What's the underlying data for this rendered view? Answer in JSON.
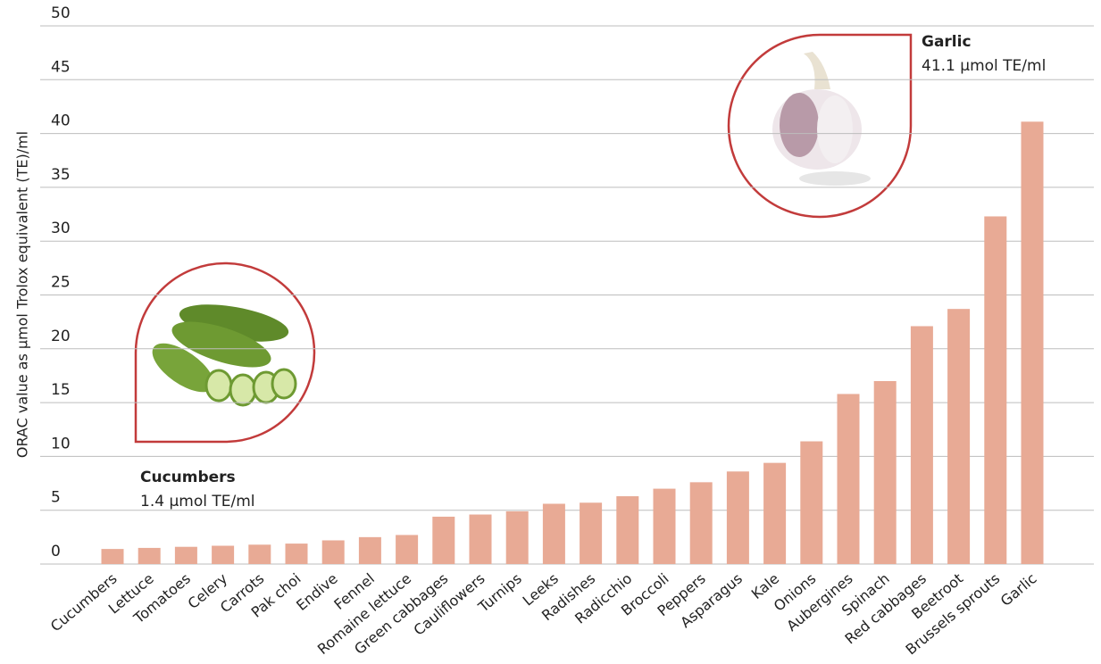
{
  "chart_data": {
    "type": "bar",
    "y_label": "ORAC value as µmol Trolox equivalent (TE)/ml",
    "categories": [
      "Cucumbers",
      "Lettuce",
      "Tomatoes",
      "Celery",
      "Carrots",
      "Pak choi",
      "Endive",
      "Fennel",
      "Romaine lettuce",
      "Green cabbages",
      "Cauliflowers",
      "Turnips",
      "Leeks",
      "Radishes",
      "Radicchio",
      "Broccoli",
      "Peppers",
      "Asparagus",
      "Kale",
      "Onions",
      "Aubergines",
      "Spinach",
      "Red cabbages",
      "Beetroot",
      "Brussels sprouts",
      "Garlic"
    ],
    "values": [
      1.4,
      1.5,
      1.6,
      1.7,
      1.8,
      1.9,
      2.2,
      2.5,
      2.7,
      4.4,
      4.6,
      4.9,
      5.6,
      5.7,
      6.3,
      7.0,
      7.6,
      8.6,
      9.4,
      11.4,
      15.8,
      17.0,
      22.1,
      23.7,
      32.3,
      41.1
    ],
    "color": "#e8aa95",
    "ylim": [
      0,
      50
    ],
    "yticks": [
      0,
      5,
      10,
      15,
      20,
      25,
      30,
      35,
      40,
      45,
      50
    ],
    "grid": true,
    "annotations": [
      {
        "title": "Cucumbers",
        "text": "1.4 µmol TE/ml"
      },
      {
        "title": "Garlic",
        "text": "41.1 µmol TE/ml"
      }
    ]
  }
}
